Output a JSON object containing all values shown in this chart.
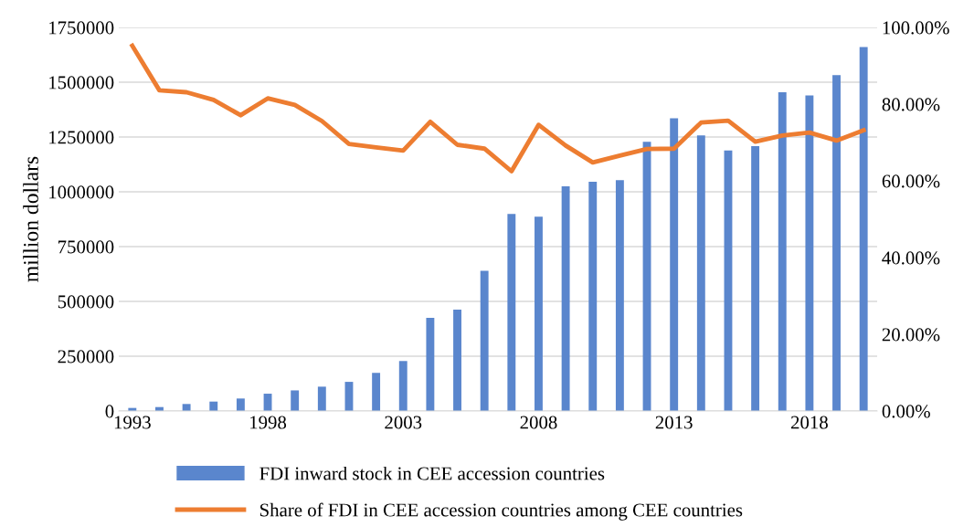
{
  "chart_data": {
    "type": "bar",
    "ylabel": "million dollars",
    "x": [
      1993,
      1994,
      1995,
      1996,
      1997,
      1998,
      1999,
      2000,
      2001,
      2002,
      2003,
      2004,
      2005,
      2006,
      2007,
      2008,
      2009,
      2010,
      2011,
      2012,
      2013,
      2014,
      2015,
      2016,
      2017,
      2018,
      2019,
      2020
    ],
    "xlim": [
      1992.5,
      2020.5
    ],
    "xticks": [
      1993,
      1998,
      2003,
      2008,
      2013,
      2018
    ],
    "ylim": [
      0,
      1750000
    ],
    "yticks": [
      0,
      250000,
      500000,
      750000,
      1000000,
      1250000,
      1500000,
      1750000
    ],
    "y2lim": [
      0,
      100
    ],
    "y2ticks": [
      {
        "value": 0,
        "label": "0.00%"
      },
      {
        "value": 20,
        "label": "20.00%"
      },
      {
        "value": 40,
        "label": "40.00%"
      },
      {
        "value": 60,
        "label": "60.00%"
      },
      {
        "value": 80,
        "label": "80.00%"
      },
      {
        "value": 100,
        "label": "100.00%"
      }
    ],
    "series": [
      {
        "name": "FDI inward stock in CEE accession countries",
        "color": "#5a86cd",
        "values": [
          14000,
          18000,
          32000,
          43000,
          57000,
          79000,
          94000,
          111000,
          133000,
          174000,
          228000,
          425000,
          462000,
          640000,
          899000,
          886000,
          1025000,
          1046000,
          1053000,
          1228000,
          1335000,
          1257000,
          1189000,
          1208000,
          1454000,
          1440000,
          1532000,
          1660000
        ]
      },
      {
        "name": "Share of FDI in CEE accession countries among CEE countries",
        "type": "line",
        "axis": "y2",
        "color": "#ed7d31",
        "values": [
          95.2,
          83.6,
          83.1,
          81.1,
          77.1,
          81.5,
          79.8,
          75.6,
          69.6,
          68.7,
          67.9,
          75.4,
          69.4,
          68.4,
          62.5,
          74.6,
          69.2,
          64.8,
          66.6,
          68.3,
          68.4,
          75.2,
          75.7,
          70.2,
          71.8,
          72.6,
          70.5,
          73.2
        ]
      }
    ],
    "grid": "y",
    "legend": "bottom",
    "marker": "none",
    "line_style": "solid"
  }
}
